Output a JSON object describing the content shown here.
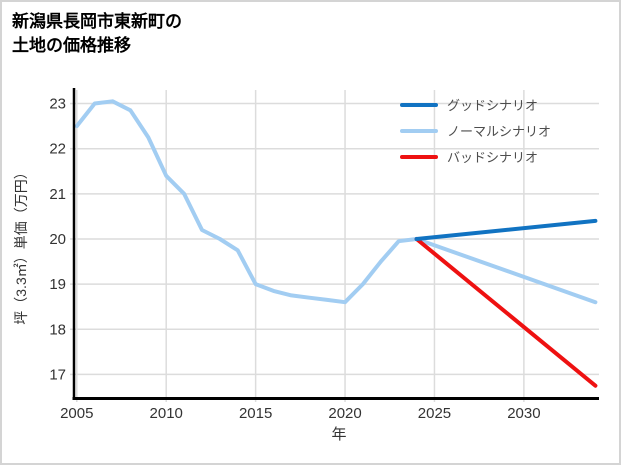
{
  "page": {
    "title_line1": "新潟県長岡市東新町の",
    "title_line2": "土地の価格推移"
  },
  "chart_data": {
    "type": "line",
    "title": "新潟県長岡市東新町の土地の価格推移",
    "xlabel": "年",
    "ylabel": "坪（3.3㎡）単価（万円）",
    "x_ticks": [
      2005,
      2010,
      2015,
      2020,
      2025,
      2030
    ],
    "y_ticks": [
      17,
      18,
      19,
      20,
      21,
      22,
      23
    ],
    "xlim": [
      2004.9,
      2034.2
    ],
    "ylim": [
      16.5,
      23.3
    ],
    "grid": true,
    "legend_position": "top-right-inside",
    "colors": {
      "good_scenario": "#1173c2",
      "normal_scenario": "#a2cdf2",
      "bad_scenario": "#ee1111",
      "grid": "#dcdcdc",
      "axis": "#000000",
      "tick_text": "#333333",
      "legend_text": "#4d4d4d"
    },
    "series": [
      {
        "name": "グッドシナリオ",
        "color": "#1173c2",
        "x": [
          2024,
          2034
        ],
        "y": [
          20.0,
          20.4
        ]
      },
      {
        "name": "ノーマルシナリオ",
        "color": "#a2cdf2",
        "x": [
          2005,
          2006,
          2007,
          2008,
          2009,
          2010,
          2011,
          2012,
          2013,
          2014,
          2015,
          2016,
          2017,
          2018,
          2019,
          2020,
          2021,
          2022,
          2023,
          2024,
          2034
        ],
        "y": [
          22.5,
          23.0,
          23.05,
          22.85,
          22.25,
          21.4,
          21.0,
          20.2,
          20.0,
          19.75,
          19.0,
          18.85,
          18.75,
          18.7,
          18.65,
          18.6,
          19.0,
          19.5,
          19.95,
          20.0,
          18.6
        ]
      },
      {
        "name": "バッドシナリオ",
        "color": "#ee1111",
        "x": [
          2024,
          2034
        ],
        "y": [
          20.0,
          16.75
        ]
      }
    ],
    "draw_order": [
      1,
      2,
      0
    ]
  }
}
